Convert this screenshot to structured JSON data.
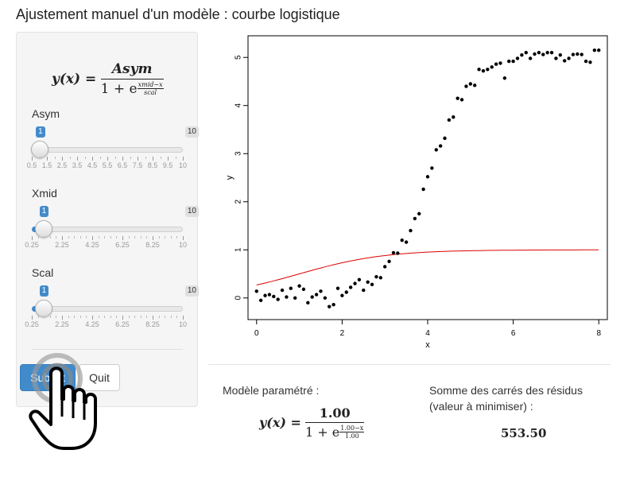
{
  "title": "Ajustement manuel d'un modèle : courbe logistique",
  "formula": {
    "lhs": "y(x) =",
    "numerator": "Asym",
    "denominator": "1 + e",
    "exp_num": "xmid−x",
    "exp_den": "scal"
  },
  "sliders": [
    {
      "label": "Asym",
      "value": "1",
      "max_label": "10",
      "fraction": 0.053,
      "tick_labels": [
        "0.5",
        "1.5",
        "2.5",
        "3.5",
        "4.5",
        "5.5",
        "6.5",
        "7.5",
        "8.5",
        "9.5",
        "10"
      ]
    },
    {
      "label": "Xmid",
      "value": "1",
      "max_label": "10",
      "fraction": 0.077,
      "tick_labels": [
        "0.25",
        "2.25",
        "4.25",
        "6.25",
        "8.25",
        "10"
      ]
    },
    {
      "label": "Scal",
      "value": "1",
      "max_label": "10",
      "fraction": 0.077,
      "tick_labels": [
        "0.25",
        "2.25",
        "4.25",
        "6.25",
        "8.25",
        "10"
      ]
    }
  ],
  "buttons": {
    "submit": "Submit",
    "quit": "Quit"
  },
  "result": {
    "model_label": "Modèle paramétré :",
    "model_formula": {
      "lhs": "y(x) =",
      "numerator": "1.00",
      "denominator": "1 + e",
      "exp_num": "1.00−x",
      "exp_den": "1.00"
    },
    "sse_label_1": "Somme des carrés des résidus",
    "sse_label_2": "(valeur à minimiser) :",
    "sse_value": "553.50"
  },
  "chart_data": {
    "type": "scatter",
    "xlabel": "x",
    "ylabel": "y",
    "xlim": [
      -0.2,
      8.2
    ],
    "ylim": [
      -0.45,
      5.45
    ],
    "xticks": [
      0,
      2,
      4,
      6,
      8
    ],
    "yticks": [
      0,
      1,
      2,
      3,
      4,
      5
    ],
    "grid": false,
    "points_x": [
      0,
      0.1,
      0.2,
      0.3,
      0.4,
      0.5,
      0.6,
      0.7,
      0.8,
      0.9,
      1,
      1.1,
      1.2,
      1.3,
      1.4,
      1.5,
      1.6,
      1.7,
      1.8,
      1.9,
      2,
      2.1,
      2.2,
      2.3,
      2.4,
      2.5,
      2.6,
      2.7,
      2.8,
      2.9,
      3,
      3.1,
      3.2,
      3.3,
      3.4,
      3.5,
      3.6,
      3.7,
      3.8,
      3.9,
      4,
      4.1,
      4.2,
      4.3,
      4.4,
      4.5,
      4.6,
      4.7,
      4.8,
      4.9,
      5,
      5.1,
      5.2,
      5.3,
      5.4,
      5.5,
      5.6,
      5.7,
      5.8,
      5.9,
      6,
      6.1,
      6.2,
      6.3,
      6.4,
      6.5,
      6.6,
      6.7,
      6.8,
      6.9,
      7,
      7.1,
      7.2,
      7.3,
      7.4,
      7.5,
      7.6,
      7.7,
      7.8,
      7.9,
      8
    ],
    "points_y": [
      0.14,
      -0.05,
      0.05,
      0.07,
      0.03,
      -0.03,
      0.16,
      0.02,
      0.2,
      0,
      0.25,
      0.18,
      -0.1,
      0.02,
      0.07,
      0.14,
      0,
      -0.18,
      -0.14,
      0.2,
      0.05,
      0.12,
      0.22,
      0.3,
      0.38,
      0.16,
      0.33,
      0.28,
      0.44,
      0.42,
      0.65,
      0.76,
      0.94,
      0.93,
      1.2,
      1.16,
      1.4,
      1.65,
      1.75,
      2.26,
      2.52,
      2.7,
      3.08,
      3.16,
      3.32,
      3.7,
      3.76,
      4.15,
      4.12,
      4.4,
      4.45,
      4.42,
      4.75,
      4.72,
      4.75,
      4.8,
      4.86,
      4.88,
      4.57,
      4.92,
      4.92,
      4.98,
      5.05,
      5.1,
      4.98,
      5.07,
      5.1,
      5.06,
      5.1,
      5.1,
      4.98,
      5.05,
      4.93,
      4.98,
      5.06,
      5.07,
      5.06,
      4.92,
      4.9,
      5.15,
      5.15
    ],
    "curve": {
      "color": "#dd0000",
      "asym": 1,
      "xmid": 1,
      "scal": 1
    },
    "point_color": "#000000"
  }
}
